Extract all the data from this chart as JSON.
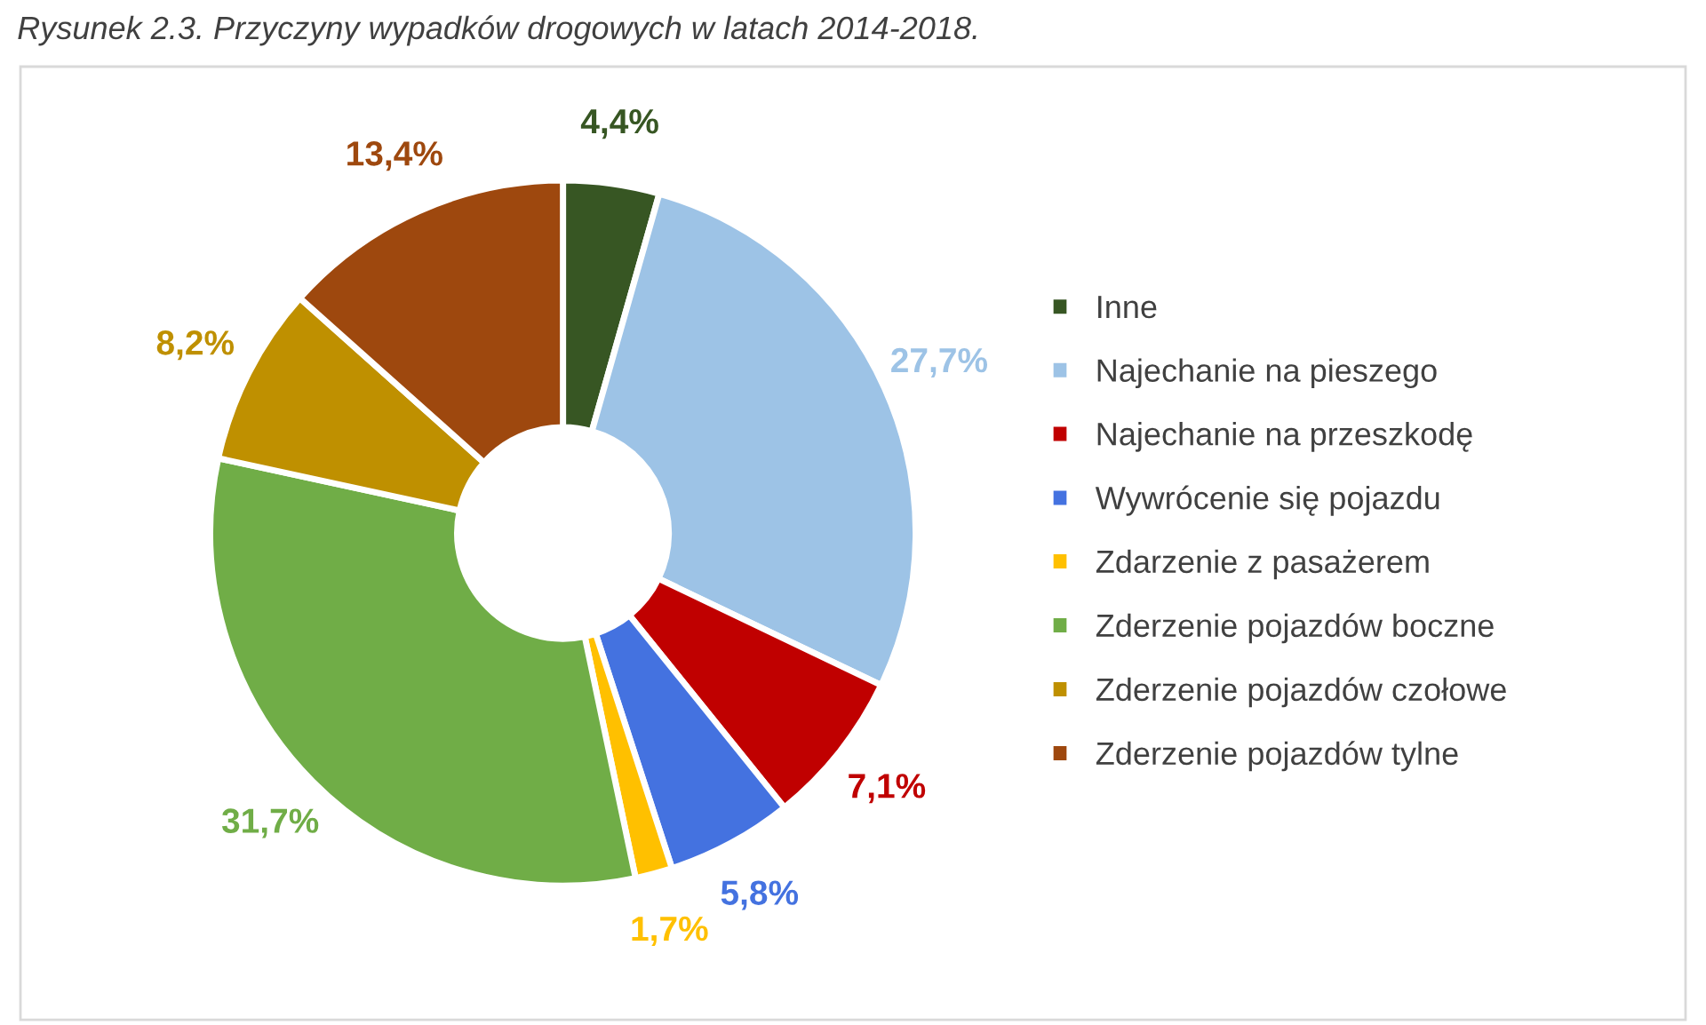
{
  "chart_data": {
    "type": "donut",
    "title": "Rysunek 2.3. Przyczyny wypadków drogowych w latach 2014-2018.",
    "categories": [
      "Inne",
      "Najechanie na pieszego",
      "Najechanie na przeszkodę",
      "Wywrócenie się pojazdu",
      "Zdarzenie z pasażerem",
      "Zderzenie pojazdów boczne",
      "Zderzenie pojazdów czołowe",
      "Zderzenie pojazdów tylne"
    ],
    "values": [
      4.4,
      27.7,
      7.1,
      5.8,
      1.7,
      31.7,
      8.2,
      13.4
    ],
    "colors": [
      "#375623",
      "#9dc3e6",
      "#c00000",
      "#4472e0",
      "#ffc000",
      "#70ad47",
      "#bf9000",
      "#9e480e"
    ],
    "value_labels": [
      "4,4%",
      "27,7%",
      "7,1%",
      "5,8%",
      "1,7%",
      "31,7%",
      "8,2%",
      "13,4%"
    ],
    "legend": "right"
  }
}
